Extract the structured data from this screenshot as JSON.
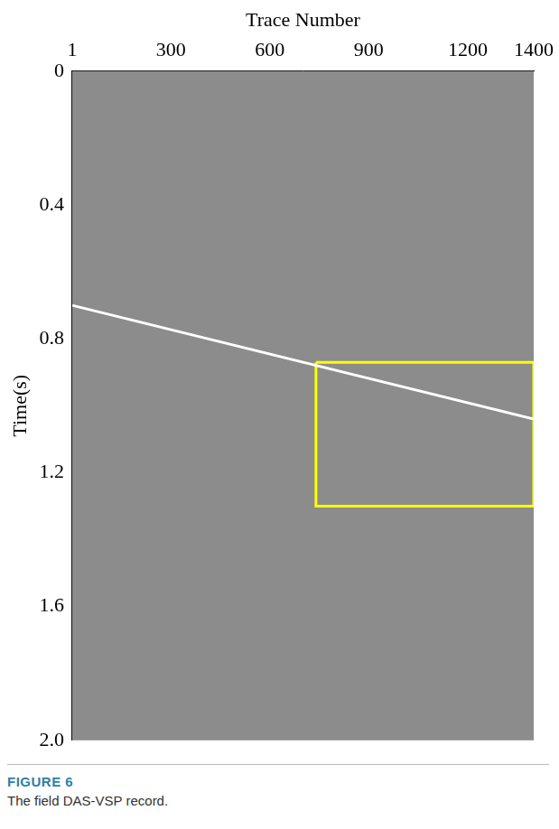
{
  "chart_data": {
    "type": "line",
    "x_label": "Trace Number",
    "y_label": "Time(s)",
    "figure_label": "FIGURE 6",
    "caption": "The field DAS-VSP record.",
    "xlim": [
      1,
      1400
    ],
    "xticks": [
      1,
      300,
      600,
      900,
      1200,
      1400
    ],
    "ylim": [
      0,
      2
    ],
    "yticks": [
      0,
      0.4,
      0.8,
      1.2,
      1.6,
      {
        "value": 2,
        "label": "2.0"
      }
    ],
    "grid": false,
    "series": [
      {
        "color": "#ffffff",
        "x": [
          1,
          1400
        ],
        "values": [
          0.7,
          1.04
        ]
      },
      {
        "color": "#ffff00",
        "x": [
          740,
          1400,
          1400,
          740,
          740
        ],
        "values": [
          0.87,
          0.87,
          1.3,
          1.3,
          0.87
        ]
      }
    ]
  }
}
